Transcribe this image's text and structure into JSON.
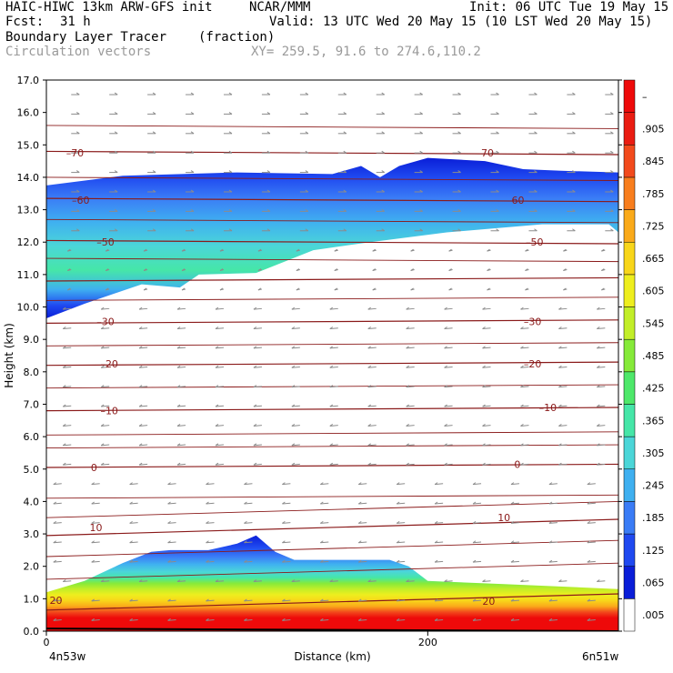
{
  "header": {
    "model": "HAIC-HIWC 13km ARW-GFS init",
    "org": "NCAR/MMM",
    "init": "Init: 06 UTC Tue 19 May 15",
    "fcst_label": "Fcst:",
    "fcst_value": "31 h",
    "valid": "Valid: 13 UTC Wed 20 May 15 (10 LST Wed 20 May 15)",
    "field": "Boundary Layer Tracer",
    "units": "(fraction)",
    "vectors": "Circulation vectors",
    "xy": "XY= 259.5, 91.6 to 274.6,110.2"
  },
  "chart_data": {
    "type": "heatmap",
    "ylabel": "Height (km)",
    "xlabel": "Distance (km)",
    "ylim": [
      0,
      17
    ],
    "xlim": [
      0,
      300
    ],
    "yticks": [
      "0.0",
      "1.0",
      "2.0",
      "3.0",
      "4.0",
      "5.0",
      "6.0",
      "7.0",
      "8.0",
      "9.0",
      "10.0",
      "11.0",
      "12.0",
      "13.0",
      "14.0",
      "15.0",
      "16.0",
      "17.0"
    ],
    "xticks": [
      {
        "value": 0,
        "label": "0"
      },
      {
        "value": 200,
        "label": "200"
      }
    ],
    "x_endpoints": {
      "left": "4n53w",
      "right": "6n51w"
    },
    "colorbar": {
      "labels": [
        ".005",
        ".065",
        ".125",
        ".185",
        ".245",
        ".305",
        ".365",
        ".425",
        ".485",
        ".545",
        ".605",
        ".665",
        ".725",
        ".785",
        ".845",
        ".905",
        "–"
      ],
      "colors": [
        "#ffffff",
        "#0a1ed8",
        "#1f49f0",
        "#3a7cf6",
        "#3fb0f0",
        "#4bd6d8",
        "#46e6a8",
        "#4ee86a",
        "#86ea3a",
        "#c2ee28",
        "#eeee1e",
        "#f8d61a",
        "#faaa1a",
        "#f87e1e",
        "#f24a1c",
        "#ea1c12",
        "#ee0a0a"
      ]
    },
    "isotherms": {
      "levels": [
        20,
        10,
        0,
        -10,
        -20,
        -30,
        -40,
        -50,
        -60,
        -70
      ],
      "labels": [
        {
          "text": "20",
          "x": 5,
          "y": 0.95
        },
        {
          "text": "20",
          "x": 232,
          "y": 0.92
        },
        {
          "text": "10",
          "x": 26,
          "y": 3.2
        },
        {
          "text": "10",
          "x": 240,
          "y": 3.5
        },
        {
          "text": "0",
          "x": 25,
          "y": 5.05
        },
        {
          "text": "0",
          "x": 247,
          "y": 5.15
        },
        {
          "text": "-10",
          "x": 33,
          "y": 6.8
        },
        {
          "text": "-10",
          "x": 263,
          "y": 6.9
        },
        {
          "text": "-20",
          "x": 33,
          "y": 8.25
        },
        {
          "text": "-20",
          "x": 255,
          "y": 8.25
        },
        {
          "text": "-30",
          "x": 31,
          "y": 9.55
        },
        {
          "text": "-30",
          "x": 255,
          "y": 9.55
        },
        {
          "text": "-50",
          "x": 31,
          "y": 12.0
        },
        {
          "text": "-50",
          "x": 256,
          "y": 12.0
        },
        {
          "text": "-60",
          "x": 18,
          "y": 13.3
        },
        {
          "text": "-60",
          "x": 246,
          "y": 13.3
        },
        {
          "text": "-70",
          "x": 15,
          "y": 14.75
        },
        {
          "text": "-70",
          "x": 230,
          "y": 14.75
        }
      ]
    },
    "upper_layer": {
      "top": [
        [
          0,
          13.75
        ],
        [
          40,
          14.05
        ],
        [
          100,
          14.15
        ],
        [
          150,
          14.1
        ],
        [
          165,
          14.35
        ],
        [
          175,
          14.0
        ],
        [
          185,
          14.35
        ],
        [
          200,
          14.6
        ],
        [
          230,
          14.5
        ],
        [
          250,
          14.25
        ],
        [
          270,
          14.2
        ],
        [
          300,
          14.15
        ]
      ],
      "bottom": [
        [
          0,
          9.65
        ],
        [
          20,
          10.1
        ],
        [
          50,
          10.7
        ],
        [
          70,
          10.6
        ],
        [
          80,
          11.0
        ],
        [
          110,
          11.05
        ],
        [
          140,
          11.75
        ],
        [
          170,
          12.0
        ],
        [
          210,
          12.3
        ],
        [
          260,
          12.55
        ],
        [
          295,
          12.55
        ],
        [
          300,
          12.3
        ]
      ]
    },
    "lower_layer": {
      "top": [
        [
          0,
          1.2
        ],
        [
          20,
          1.55
        ],
        [
          40,
          2.1
        ],
        [
          55,
          2.45
        ],
        [
          65,
          2.5
        ],
        [
          85,
          2.5
        ],
        [
          100,
          2.7
        ],
        [
          110,
          2.95
        ],
        [
          120,
          2.45
        ],
        [
          130,
          2.2
        ],
        [
          180,
          2.2
        ],
        [
          190,
          2.0
        ],
        [
          200,
          1.55
        ],
        [
          240,
          1.45
        ],
        [
          300,
          1.3
        ]
      ]
    },
    "vector_field": "circulation vectors (gray arrows): westward below ~11 km, eastward aloft"
  }
}
